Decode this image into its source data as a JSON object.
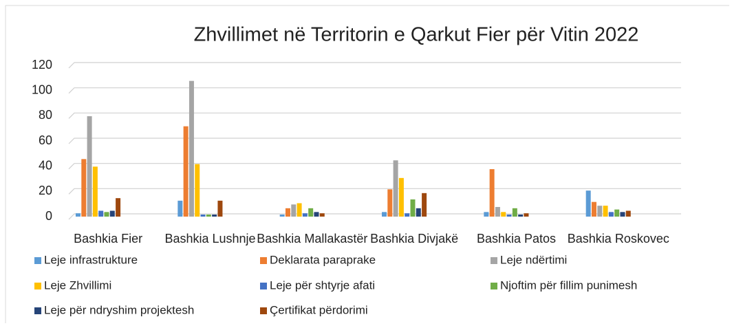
{
  "chart_data": {
    "type": "bar",
    "title": "Zhvillimet në Territorin e Qarkut Fier për Vitin 2022",
    "categories": [
      "Bashkia Fier",
      "Bashkia Lushnje",
      "Bashkia Mallakastër",
      "Bashkia Divjakë",
      "Bashkia Patos",
      "Bashkia Roskovec"
    ],
    "series": [
      {
        "name": "Leje infrastrukture",
        "color": "#5b9bd5",
        "values": [
          1,
          11,
          0,
          2,
          2,
          19
        ]
      },
      {
        "name": "Deklarata paraprake",
        "color": "#ed7d31",
        "values": [
          44,
          70,
          5,
          20,
          36,
          10
        ]
      },
      {
        "name": "Leje ndërtimi",
        "color": "#a5a5a5",
        "values": [
          78,
          106,
          8,
          43,
          6,
          7
        ]
      },
      {
        "name": "Leje Zhvillimi",
        "color": "#ffc000",
        "values": [
          38,
          40,
          9,
          29,
          2,
          7
        ]
      },
      {
        "name": "Leje për shtyrje afati",
        "color": "#4472c4",
        "values": [
          3,
          0,
          1,
          1,
          0,
          2
        ]
      },
      {
        "name": "Njoftim për fillim punimesh",
        "color": "#70ad47",
        "values": [
          2,
          0,
          5,
          12,
          5,
          4
        ]
      },
      {
        "name": "Leje për ndryshim projektesh",
        "color": "#264478",
        "values": [
          3,
          0,
          2,
          5,
          0,
          2
        ]
      },
      {
        "name": "Çertifikat përdorimi",
        "color": "#9e480e",
        "values": [
          13,
          11,
          1,
          17,
          1,
          3
        ]
      }
    ],
    "ylim": [
      0,
      120
    ],
    "yticks": [
      0,
      20,
      40,
      60,
      80,
      100,
      120
    ],
    "grid": true,
    "legend": "bottom"
  }
}
